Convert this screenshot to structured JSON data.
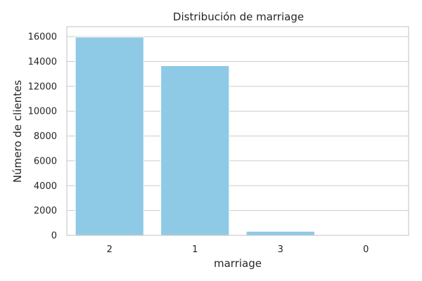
{
  "chart_data": {
    "type": "bar",
    "title": "Distribución de marriage",
    "xlabel": "marriage",
    "ylabel": "Número de clientes",
    "categories": [
      "2",
      "1",
      "3",
      "0"
    ],
    "values": [
      15964,
      13659,
      323,
      54
    ],
    "ylim": [
      0,
      16800
    ],
    "yticks": [
      0,
      2000,
      4000,
      6000,
      8000,
      10000,
      12000,
      14000,
      16000
    ],
    "grid": true,
    "legend": "none",
    "bar_color": "#8ecae6"
  }
}
